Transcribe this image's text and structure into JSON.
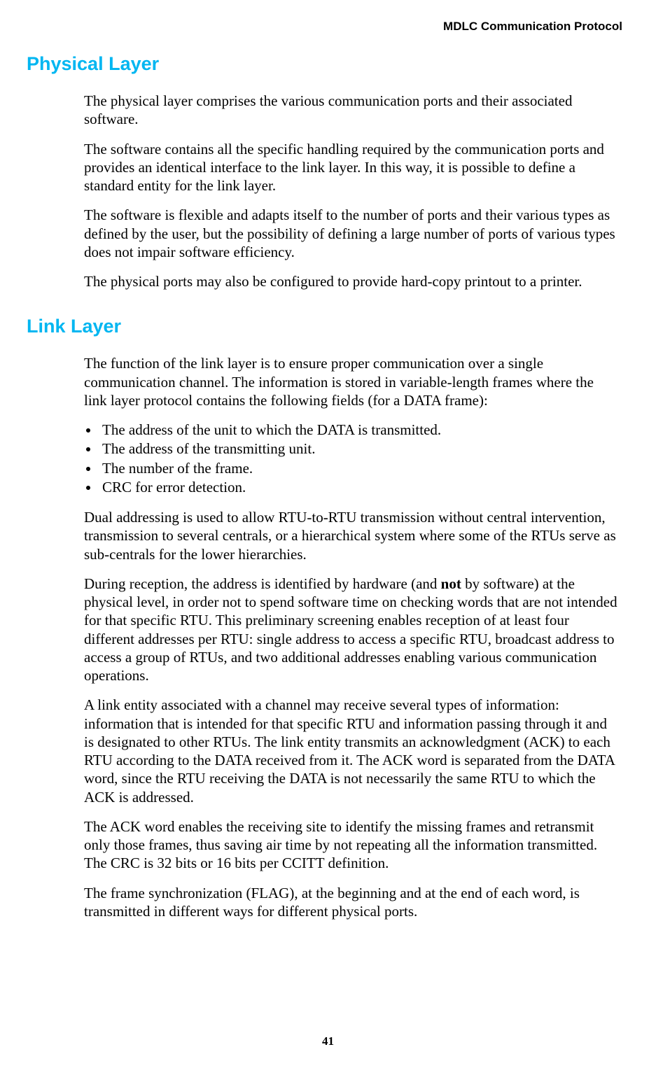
{
  "header": {
    "running_title": "MDLC Communication Protocol"
  },
  "colors": {
    "heading": "#00b6f1",
    "text": "#000000",
    "background": "#ffffff"
  },
  "typography": {
    "heading_family": "Arial",
    "heading_size_pt": 20,
    "heading_weight": "bold",
    "body_family": "Times New Roman",
    "body_size_pt": 16,
    "running_head_size_pt": 13,
    "page_number_size_pt": 13
  },
  "sections": [
    {
      "title": "Physical Layer",
      "paragraphs": [
        "The physical layer comprises the various communication ports and their associated software.",
        "The software contains all the specific handling required by the communication ports and provides an identical interface to the link layer. In this way, it is possible to define a standard entity for the link layer.",
        "The software is flexible and adapts itself to the number of ports and their various types as defined by the user, but the possibility of defining a large number of ports of various types does not impair software efficiency.",
        "The physical ports may also be configured to provide hard-copy printout to a printer."
      ]
    },
    {
      "title": "Link Layer",
      "intro": "The function of the link layer is to ensure proper communication over a single communication channel. The information is stored in variable-length frames where the link layer protocol contains the following fields (for a DATA frame):",
      "bullets": [
        "The address of the unit to which the DATA is transmitted.",
        "The address of the transmitting unit.",
        "The number of the frame.",
        "CRC for error detection."
      ],
      "paragraphs": [
        "Dual addressing is used to allow RTU-to-RTU transmission without central intervention, transmission to several centrals, or a hierarchical system where some of the RTUs serve as sub-centrals for the lower hierarchies.",
        {
          "pre": "During reception, the address is identified by hardware (and ",
          "bold": "not",
          "post": " by software) at the physical level, in order not to spend software time on checking words that are not intended for that specific RTU. This preliminary screening enables reception of at least four different addresses per RTU: single address to access a specific RTU, broadcast address to access a group of RTUs, and two additional addresses enabling various communication operations."
        },
        "A link entity associated with a channel may receive several types of information: information that is intended for that specific RTU and information passing through it and is designated to other RTUs. The link entity transmits an acknowledgment (ACK) to each RTU according to the DATA received from it. The ACK word is separated from the DATA word, since the RTU receiving the DATA is not necessarily the same RTU to which the ACK is addressed.",
        "The ACK word enables the receiving site to identify the missing frames and retransmit only those frames, thus saving air time by not repeating all the information transmitted. The CRC is 32 bits or 16 bits per CCITT definition.",
        "The frame synchronization (FLAG), at the beginning and at the end of each word, is transmitted in different ways for different physical ports."
      ]
    }
  ],
  "page_number": "41"
}
